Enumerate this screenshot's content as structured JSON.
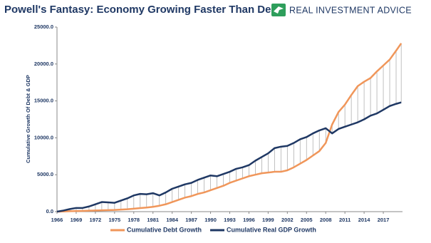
{
  "chart_data": {
    "type": "line",
    "title": "Powell's Fantasy: Economy Growing Faster Than Debt",
    "logo": "REAL INVESTMENT ADVICE",
    "ylabel": "Cumulative Growth Of Debt & GDP",
    "x": [
      1966,
      1967,
      1968,
      1969,
      1970,
      1971,
      1972,
      1973,
      1974,
      1975,
      1976,
      1977,
      1978,
      1979,
      1980,
      1981,
      1982,
      1983,
      1984,
      1985,
      1986,
      1987,
      1988,
      1989,
      1990,
      1991,
      1992,
      1993,
      1994,
      1995,
      1996,
      1997,
      1998,
      1999,
      2000,
      2001,
      2002,
      2003,
      2004,
      2005,
      2006,
      2007,
      2008,
      2009,
      2010,
      2011,
      2012,
      2013,
      2014,
      2015,
      2016,
      2017,
      2018,
      2019,
      2019.8
    ],
    "series": [
      {
        "name": "Cumulative Debt Growth",
        "color": "#f0965a",
        "values": [
          0,
          30,
          60,
          80,
          100,
          130,
          160,
          180,
          200,
          230,
          280,
          330,
          400,
          480,
          550,
          650,
          800,
          1000,
          1300,
          1600,
          1900,
          2100,
          2400,
          2600,
          2900,
          3200,
          3500,
          3900,
          4200,
          4500,
          4800,
          5000,
          5200,
          5300,
          5400,
          5400,
          5600,
          6000,
          6500,
          7000,
          7600,
          8200,
          9300,
          11800,
          13500,
          14500,
          15800,
          17000,
          17600,
          18100,
          19000,
          19800,
          20600,
          21800,
          22800
        ]
      },
      {
        "name": "Cumulative Real GDP Growth",
        "color": "#1f3864",
        "values": [
          0,
          150,
          350,
          500,
          500,
          700,
          1000,
          1300,
          1250,
          1200,
          1500,
          1800,
          2200,
          2400,
          2350,
          2500,
          2200,
          2600,
          3100,
          3400,
          3700,
          3900,
          4300,
          4600,
          4900,
          4800,
          5100,
          5400,
          5800,
          6000,
          6300,
          6900,
          7400,
          7900,
          8600,
          8800,
          8900,
          9300,
          9800,
          10100,
          10600,
          11000,
          11300,
          10600,
          11200,
          11500,
          11800,
          12100,
          12500,
          13000,
          13300,
          13800,
          14300,
          14600,
          14800
        ]
      }
    ],
    "xlim": [
      1966,
      2020
    ],
    "xticks": [
      1966,
      1969,
      1972,
      1975,
      1978,
      1981,
      1984,
      1987,
      1990,
      1993,
      1996,
      1999,
      2002,
      2005,
      2008,
      2011,
      2014,
      2017
    ],
    "ylim": [
      0,
      25000
    ],
    "yticks": [
      {
        "value": 0,
        "label": "0.0"
      },
      {
        "value": 5000,
        "label": "5000.0"
      },
      {
        "value": 10000,
        "label": "10000.0"
      },
      {
        "value": 15000,
        "label": "15000.0"
      },
      {
        "value": 20000,
        "label": "20000.0"
      },
      {
        "value": 25000,
        "label": "25000.0"
      }
    ],
    "fill_between": true,
    "fill_color": "#b0b0b0"
  }
}
